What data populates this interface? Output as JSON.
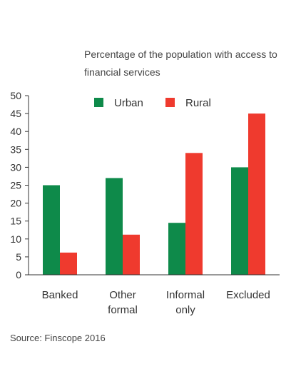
{
  "chart_data": {
    "type": "bar",
    "title_lines": [
      "Percentage of the population with access to",
      "financial services"
    ],
    "categories": [
      [
        "Banked"
      ],
      [
        "Other",
        "formal"
      ],
      [
        "Informal",
        "only"
      ],
      [
        "Excluded"
      ]
    ],
    "series": [
      {
        "name": "Urban",
        "color": "#0e8a4a",
        "values": [
          25,
          27,
          14.5,
          30
        ]
      },
      {
        "name": "Rural",
        "color": "#ef3a2e",
        "values": [
          6.2,
          11.2,
          34,
          45
        ]
      }
    ],
    "ylim": [
      0,
      50
    ],
    "yticks": [
      0,
      5,
      10,
      15,
      20,
      25,
      30,
      35,
      40,
      45,
      50
    ],
    "grid": false,
    "legend_position": "top-center",
    "source": "Source: Finscope 2016"
  }
}
